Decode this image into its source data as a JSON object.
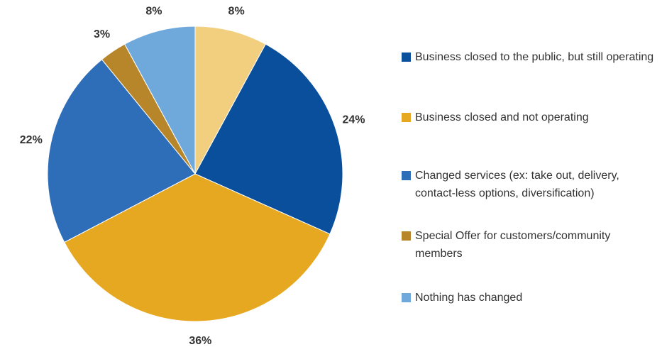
{
  "chart_data": {
    "type": "pie",
    "categories": [
      null,
      "Business closed to the public, but still operating",
      "Business closed and not operating",
      "Changed services (ex: take out, delivery, contact-less options, diversification)",
      "Special Offer for customers/community members",
      "Nothing has changed"
    ],
    "values": [
      8,
      24,
      36,
      22,
      3,
      8
    ],
    "value_labels": [
      "8%",
      "24%",
      "36%",
      "22%",
      "3%",
      "8%"
    ],
    "colors": [
      "#f2cf7e",
      "#0a4f9c",
      "#e6a821",
      "#2e6db8",
      "#b8862a",
      "#6fa9dc"
    ],
    "legend": "right"
  }
}
